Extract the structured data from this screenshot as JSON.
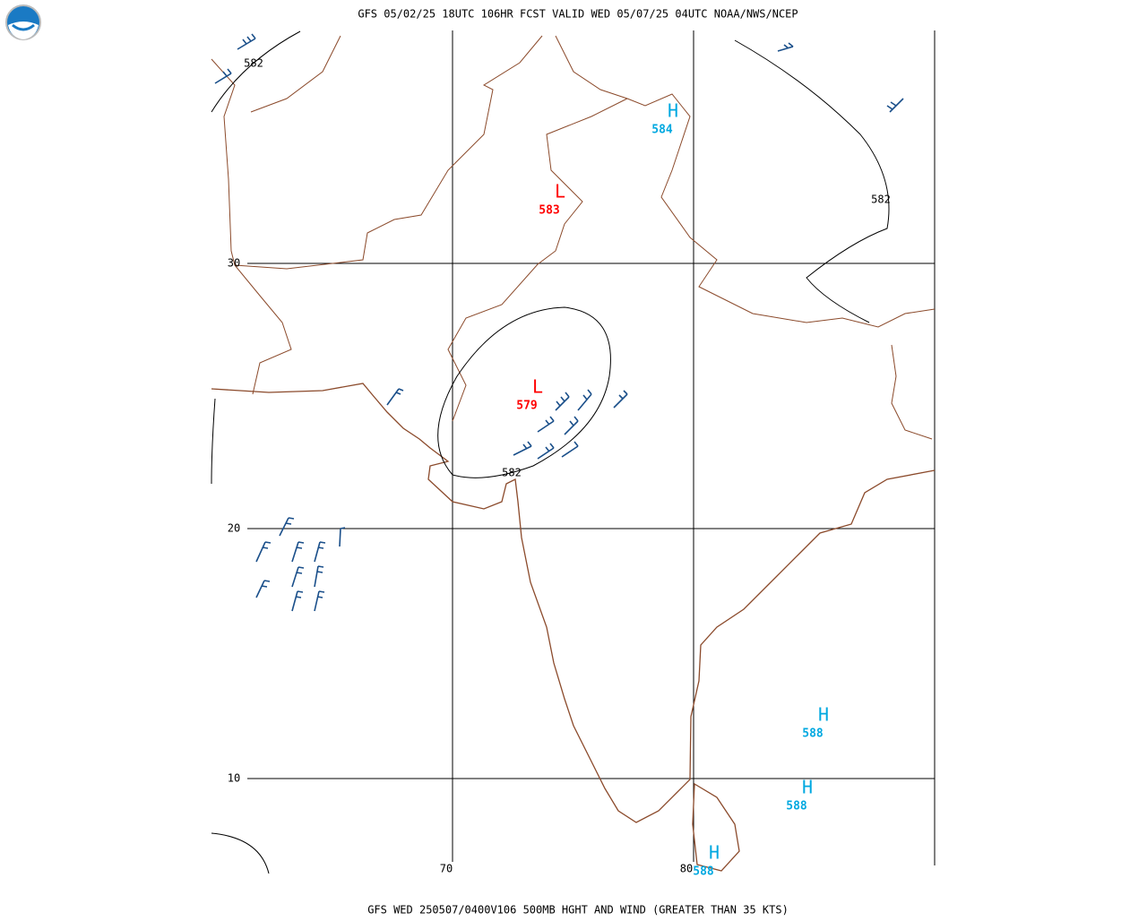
{
  "header": {
    "title": "GFS 05/02/25 18UTC 106HR FCST VALID WED 05/07/25 04UTC NOAA/NWS/NCEP",
    "footer": "GFS WED 250507/0400V106 500MB HGHT AND WIND (GREATER THAN 35 KTS)"
  },
  "grid": {
    "lat_labels": [
      "30",
      "20",
      "10"
    ],
    "lon_labels": [
      "70",
      "80"
    ]
  },
  "contour_labels": [
    "582",
    "582",
    "582"
  ],
  "centers": [
    {
      "symbol": "L",
      "value": "583"
    },
    {
      "symbol": "L",
      "value": "579"
    },
    {
      "symbol": "H",
      "value": "584"
    },
    {
      "symbol": "H",
      "value": "588"
    },
    {
      "symbol": "H",
      "value": "588"
    },
    {
      "symbol": "H",
      "value": "588"
    }
  ]
}
